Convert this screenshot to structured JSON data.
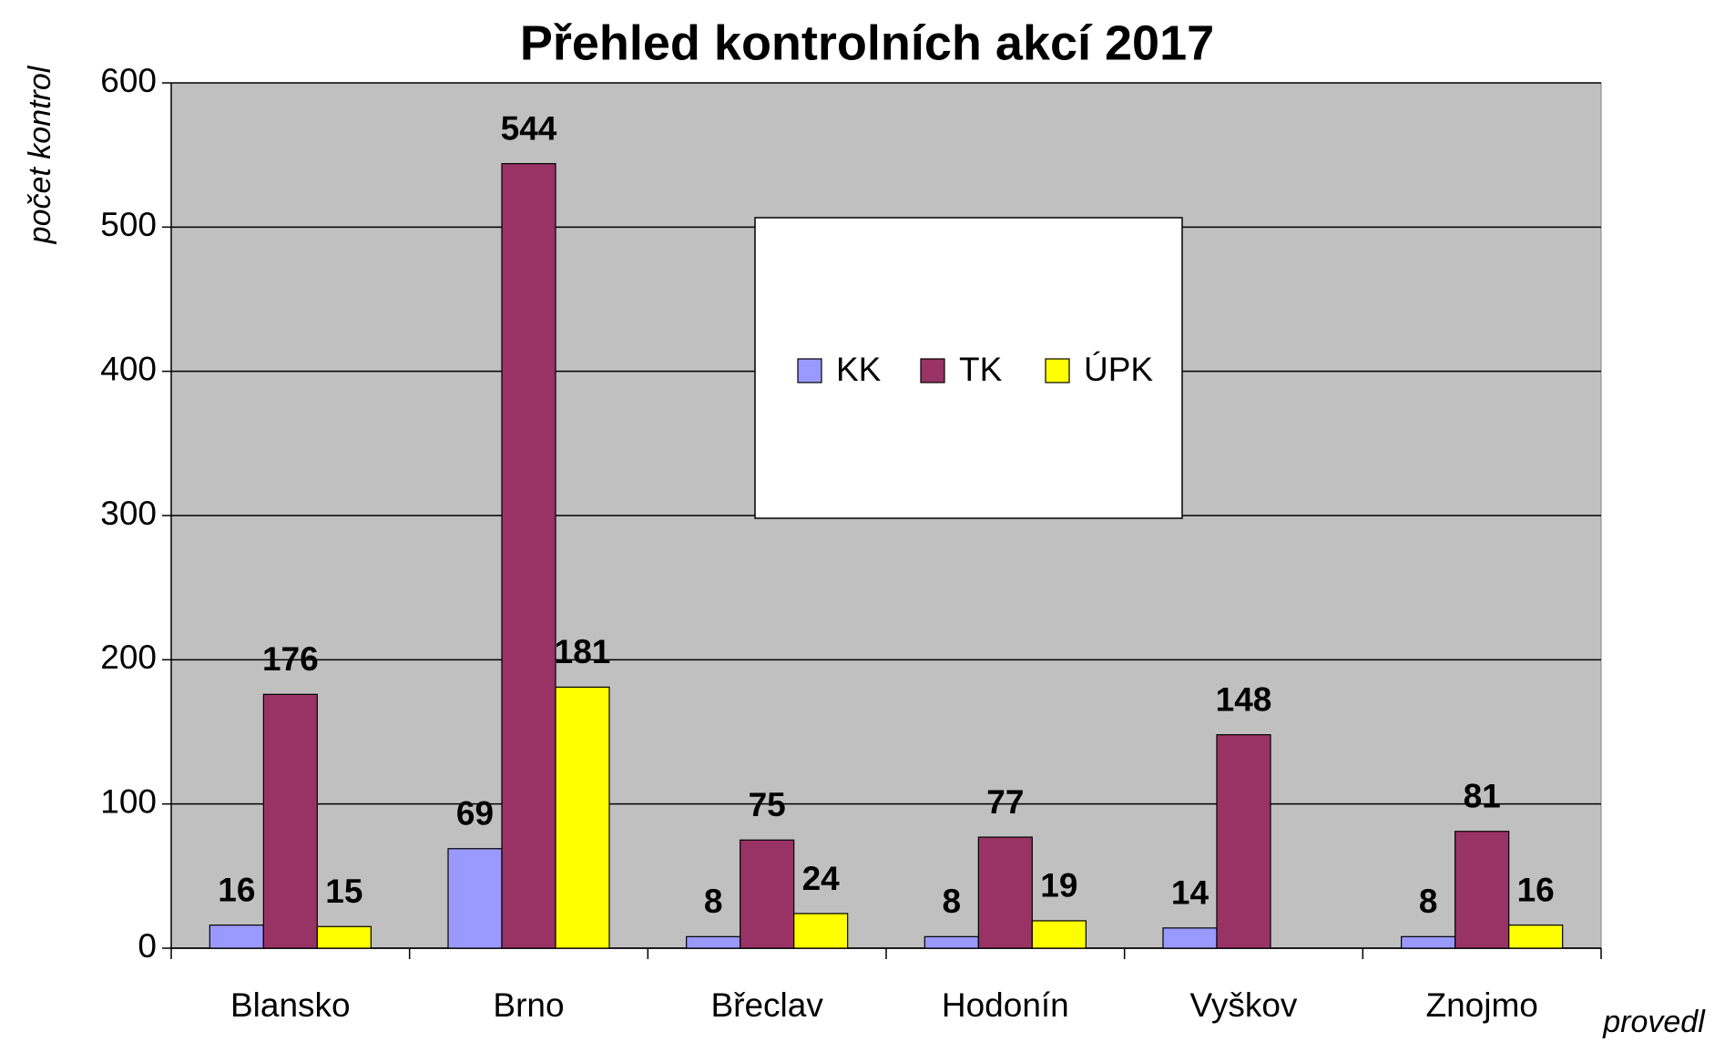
{
  "chart_data": {
    "type": "bar",
    "title": "Přehled kontrolních akcí 2017",
    "y_label": "počet kontrol",
    "x_label": "provedl",
    "categories": [
      "Blansko",
      "Brno",
      "Břeclav",
      "Hodonín",
      "Vyškov",
      "Znojmo"
    ],
    "series": [
      {
        "name": "KK",
        "color": "#9999ff",
        "values": [
          16,
          69,
          8,
          8,
          14,
          8
        ]
      },
      {
        "name": "TK",
        "color": "#993366",
        "values": [
          176,
          544,
          75,
          77,
          148,
          81
        ]
      },
      {
        "name": "ÚPK",
        "color": "#ffff00",
        "values": [
          15,
          181,
          24,
          19,
          null,
          16
        ]
      }
    ],
    "ylim": [
      0,
      600
    ],
    "yticks": [
      0,
      100,
      200,
      300,
      400,
      500,
      600
    ],
    "grid": true,
    "legend": "center"
  }
}
